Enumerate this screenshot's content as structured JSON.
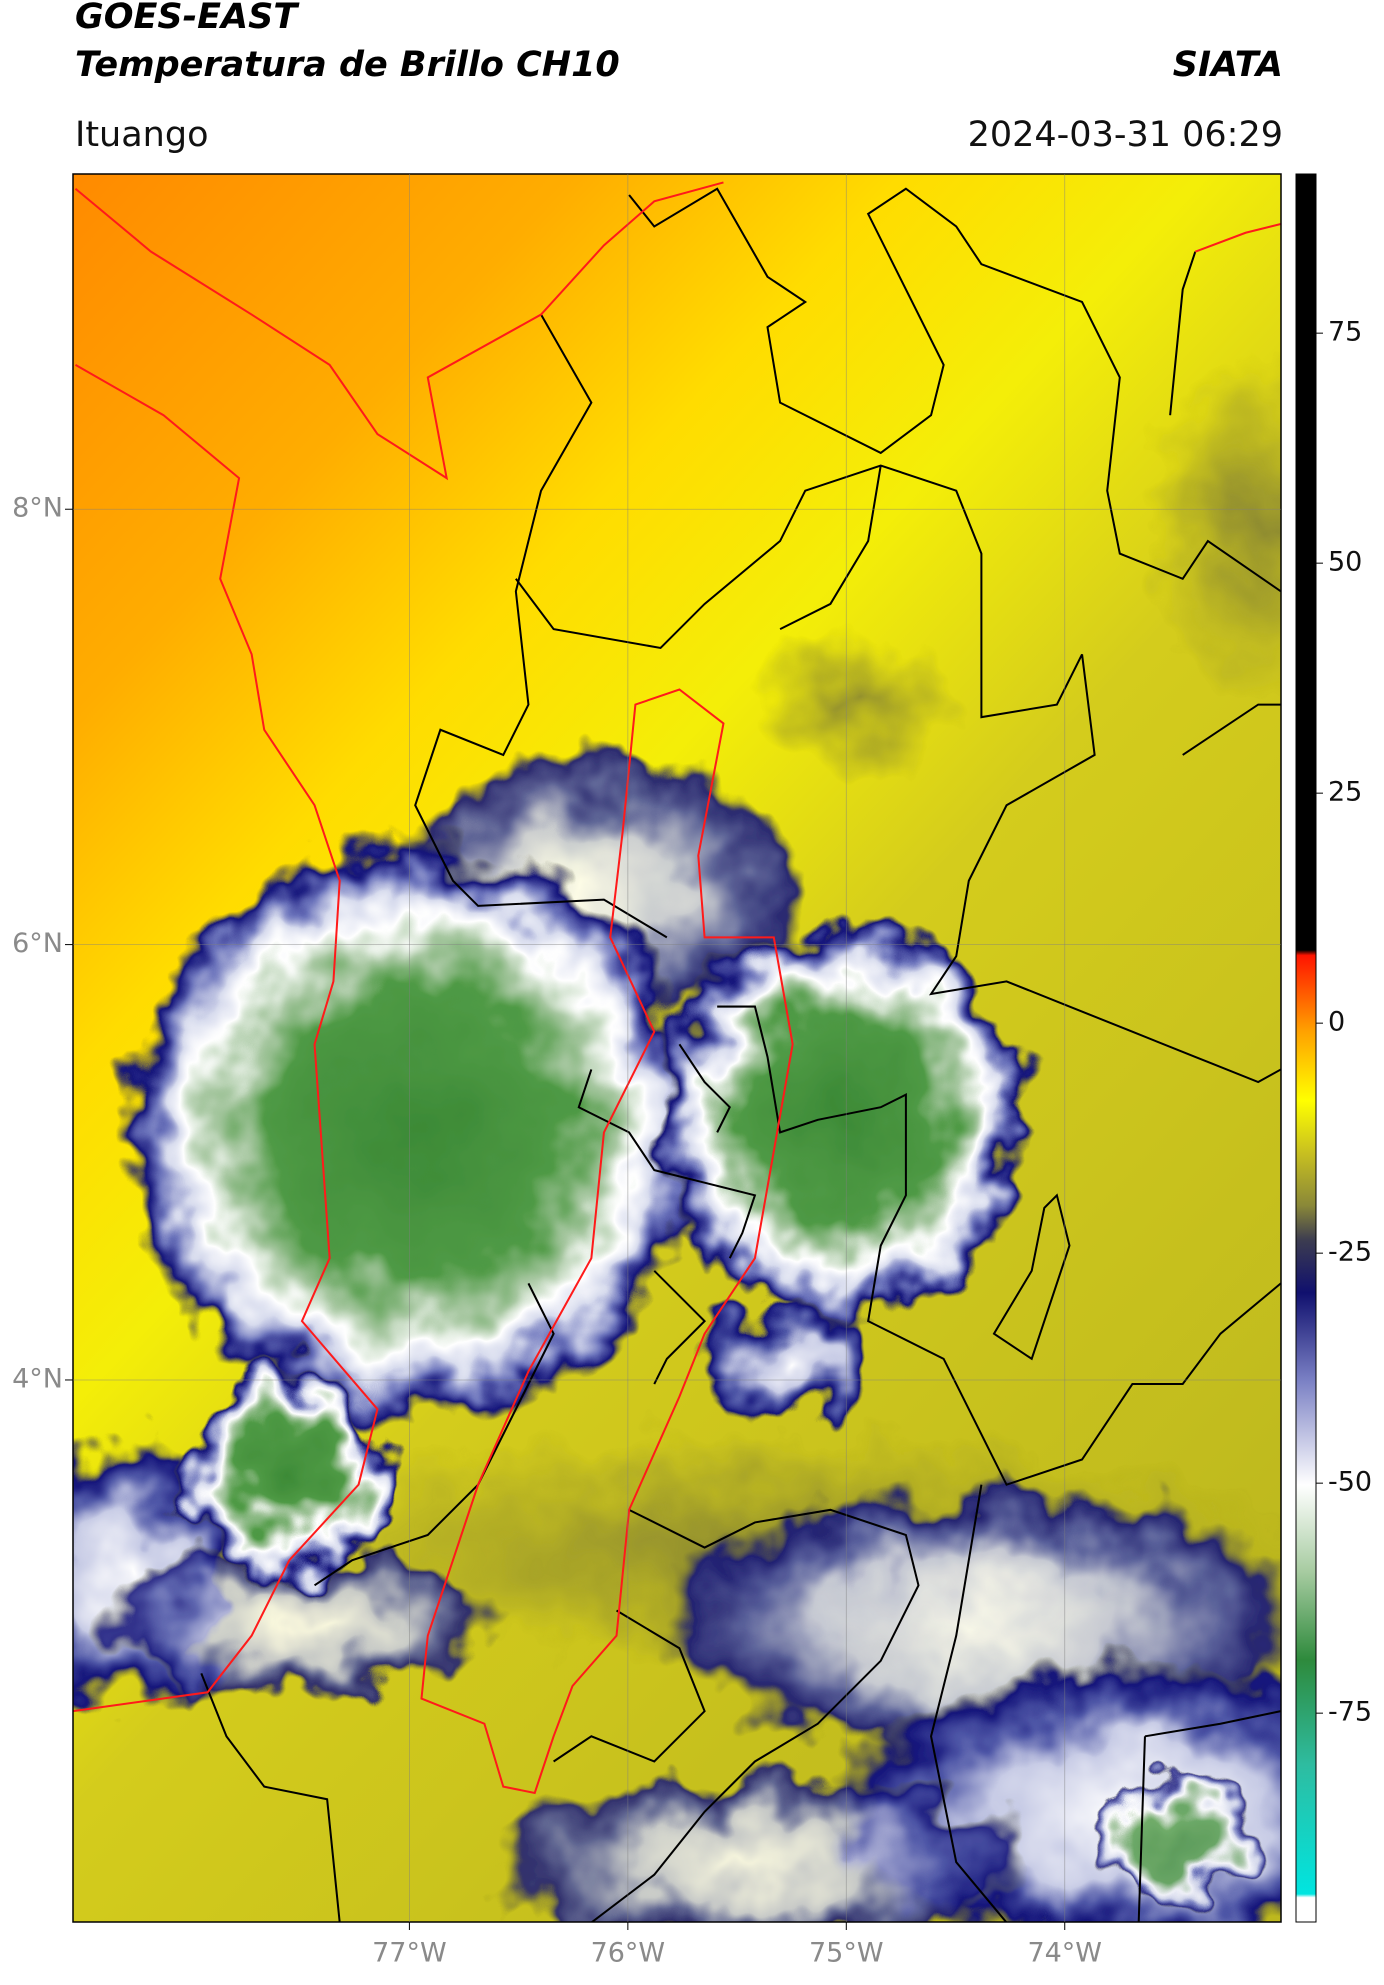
{
  "header": {
    "satellite": "GOES-EAST",
    "product": "Temperatura de Brillo CH10",
    "agency": "SIATA",
    "location": "Ituango",
    "datetime": "2024-03-31 06:29"
  },
  "map": {
    "xlim": [
      -78.54,
      -73.01
    ],
    "xticks": [
      {
        "value": -77,
        "label": "77°W"
      },
      {
        "value": -76,
        "label": "76°W"
      },
      {
        "value": -75,
        "label": "75°W"
      },
      {
        "value": -74,
        "label": "74°W"
      }
    ],
    "ylim": [
      1.51,
      9.54
    ],
    "yticks": [
      {
        "value": 8,
        "label": "8°N"
      },
      {
        "value": 6,
        "label": "6°N"
      },
      {
        "value": 4,
        "label": "4°N"
      }
    ]
  },
  "colorbar": {
    "lim": [
      -97.7,
      92.3
    ],
    "ticks": [
      75,
      50,
      25,
      0,
      -25,
      -50,
      -75
    ]
  }
}
